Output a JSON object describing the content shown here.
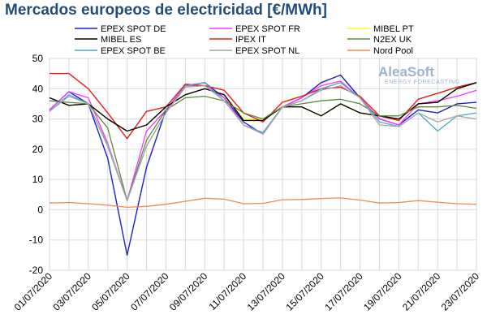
{
  "title": "Mercados europeos de electricidad [€/MWh]",
  "watermark": {
    "brand": "AleaSoft",
    "tagline": "ENERGY FORECASTING"
  },
  "chart_data": {
    "type": "line",
    "title": "Mercados europeos de electricidad [€/MWh]",
    "xlabel": "",
    "ylabel": "",
    "ylim": [
      -20,
      50
    ],
    "yticks": [
      -20,
      -10,
      0,
      10,
      20,
      30,
      40,
      50
    ],
    "x": [
      "01/07/2020",
      "02/07/2020",
      "03/07/2020",
      "04/07/2020",
      "05/07/2020",
      "06/07/2020",
      "07/07/2020",
      "08/07/2020",
      "09/07/2020",
      "10/07/2020",
      "11/07/2020",
      "12/07/2020",
      "13/07/2020",
      "14/07/2020",
      "15/07/2020",
      "16/07/2020",
      "17/07/2020",
      "18/07/2020",
      "19/07/2020",
      "20/07/2020",
      "21/07/2020",
      "22/07/2020",
      "23/07/2020"
    ],
    "xtick_labels": [
      "01/07/2020",
      "03/07/2020",
      "05/07/2020",
      "07/07/2020",
      "09/07/2020",
      "11/07/2020",
      "13/07/2020",
      "15/07/2020",
      "17/07/2020",
      "19/07/2020",
      "21/07/2020",
      "23/07/2020"
    ],
    "grid": true,
    "legend": "top",
    "series": [
      {
        "name": "EPEX SPOT DE",
        "color": "#1f1fcc",
        "values": [
          33,
          39,
          35,
          17,
          -15,
          14,
          33,
          41,
          42,
          37,
          29,
          25,
          34,
          37,
          42,
          44.5,
          37,
          30,
          28,
          33,
          32,
          35,
          35.5
        ]
      },
      {
        "name": "EPEX SPOT FR",
        "color": "#ff33ff",
        "values": [
          33,
          39,
          37,
          22,
          3,
          26,
          33,
          41,
          41,
          37,
          28,
          25,
          34,
          37,
          41,
          42.5,
          37,
          30,
          28,
          35,
          36,
          37.5,
          39.5
        ]
      },
      {
        "name": "MIBEL PT",
        "color": "#ffff00",
        "values": [
          37,
          34.5,
          35,
          30,
          26,
          28,
          34,
          38,
          40,
          38,
          30,
          30,
          34,
          34,
          31,
          35,
          32,
          31,
          30,
          35,
          35.5,
          40,
          42
        ]
      },
      {
        "name": "IPEX IT",
        "color": "#e81a1a",
        "values": [
          45,
          45,
          40,
          32,
          23.5,
          32.5,
          34,
          41.5,
          41,
          39.5,
          32,
          29,
          35.5,
          37.5,
          40,
          40.5,
          37.5,
          31,
          29.5,
          36.5,
          38.5,
          40.5,
          42
        ]
      },
      {
        "name": "MIBEL ES",
        "color": "#000000",
        "values": [
          37,
          34.5,
          35,
          30,
          26,
          28,
          34,
          38,
          40,
          38,
          29.5,
          29.5,
          34,
          34,
          31,
          35,
          32,
          31,
          30,
          35,
          35.5,
          40,
          42
        ]
      },
      {
        "name": "N2EX UK",
        "color": "#5a8a3a",
        "values": [
          36,
          35.5,
          35,
          27,
          3,
          23,
          33,
          37,
          37.5,
          36,
          32,
          30,
          34,
          35,
          36,
          36.5,
          35,
          31,
          31,
          34,
          34,
          34.5,
          33.5
        ]
      },
      {
        "name": "EPEX SPOT BE",
        "color": "#4bacc6",
        "values": [
          32.5,
          38,
          35,
          21,
          3,
          21,
          32,
          41,
          42,
          36,
          28,
          25.5,
          34,
          36,
          40,
          42,
          37,
          29,
          27.5,
          32,
          26,
          31,
          32
        ]
      },
      {
        "name": "EPEX SPOT NL",
        "color": "#a6a6a6",
        "values": [
          32.5,
          37.5,
          35,
          21.5,
          3,
          21,
          32,
          40.5,
          41,
          36,
          28,
          25,
          34,
          36,
          39.5,
          41,
          37,
          28,
          27.5,
          32,
          29,
          31,
          30
        ]
      },
      {
        "name": "Nord Pool",
        "color": "#ed8a4f",
        "values": [
          2.2,
          2.4,
          2.0,
          1.5,
          0.8,
          1.1,
          1.8,
          2.8,
          3.8,
          3.5,
          2.0,
          2.1,
          3.3,
          3.4,
          3.7,
          3.9,
          3.2,
          2.2,
          2.4,
          3.0,
          2.5,
          2.0,
          1.8
        ]
      }
    ]
  }
}
